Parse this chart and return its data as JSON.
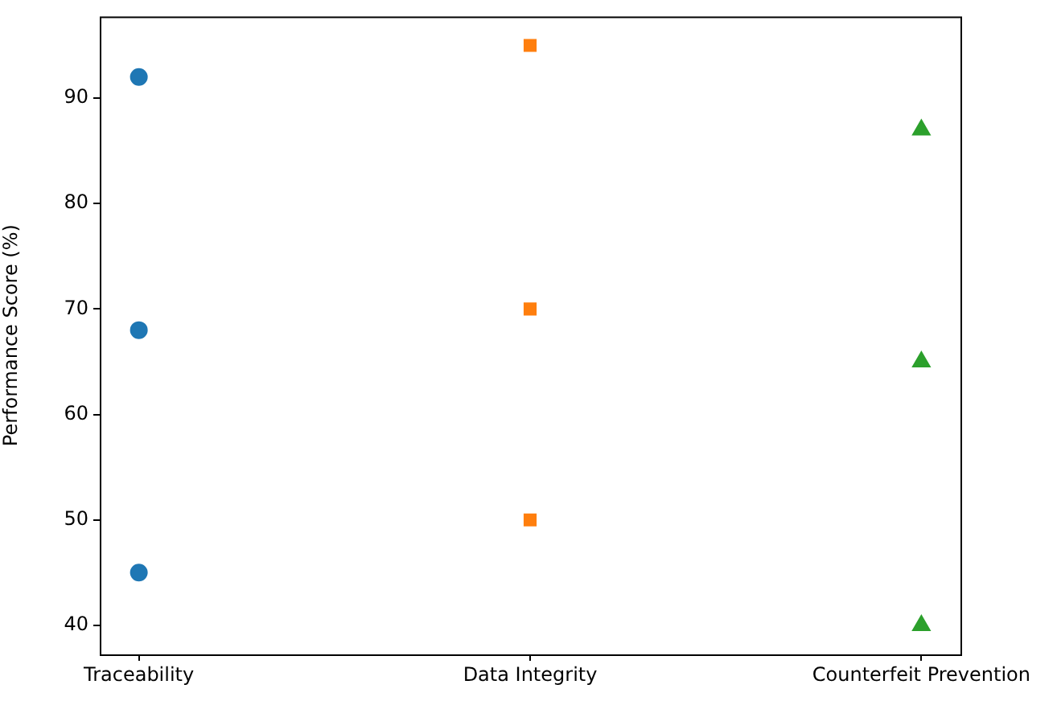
{
  "chart_data": {
    "type": "scatter",
    "ylabel": "Performance Score (%)",
    "categories": [
      "Traceability",
      "Data Integrity",
      "Counterfeit Prevention"
    ],
    "series": [
      {
        "color": "#1f77b4",
        "marker": "circle",
        "x": [
          "Traceability",
          "Traceability",
          "Traceability"
        ],
        "values": [
          92,
          68,
          45
        ]
      },
      {
        "color": "#ff7f0e",
        "marker": "square",
        "x": [
          "Data Integrity",
          "Data Integrity",
          "Data Integrity"
        ],
        "values": [
          95,
          70,
          50
        ]
      },
      {
        "color": "#2ca02c",
        "marker": "triangle",
        "x": [
          "Counterfeit Prevention",
          "Counterfeit Prevention",
          "Counterfeit Prevention"
        ],
        "values": [
          87,
          65,
          40
        ]
      }
    ],
    "ylim": [
      37.25,
      97.75
    ],
    "yticks": [
      40,
      50,
      60,
      70,
      80,
      90
    ],
    "grid": false,
    "legend": false
  }
}
